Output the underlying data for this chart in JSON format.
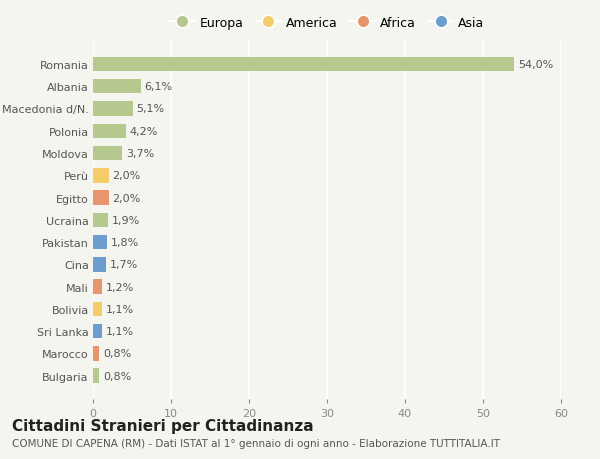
{
  "countries": [
    "Romania",
    "Albania",
    "Macedonia d/N.",
    "Polonia",
    "Moldova",
    "Perù",
    "Egitto",
    "Ucraina",
    "Pakistan",
    "Cina",
    "Mali",
    "Bolivia",
    "Sri Lanka",
    "Marocco",
    "Bulgaria"
  ],
  "values": [
    54.0,
    6.1,
    5.1,
    4.2,
    3.7,
    2.0,
    2.0,
    1.9,
    1.8,
    1.7,
    1.2,
    1.1,
    1.1,
    0.8,
    0.8
  ],
  "labels": [
    "54,0%",
    "6,1%",
    "5,1%",
    "4,2%",
    "3,7%",
    "2,0%",
    "2,0%",
    "1,9%",
    "1,8%",
    "1,7%",
    "1,2%",
    "1,1%",
    "1,1%",
    "0,8%",
    "0,8%"
  ],
  "continents": [
    "Europa",
    "Europa",
    "Europa",
    "Europa",
    "Europa",
    "America",
    "Africa",
    "Europa",
    "Asia",
    "Asia",
    "Africa",
    "America",
    "Asia",
    "Africa",
    "Europa"
  ],
  "continent_colors": {
    "Europa": "#b5c98e",
    "America": "#f5cc6a",
    "Africa": "#e8956d",
    "Asia": "#6b9ecf"
  },
  "legend_order": [
    "Europa",
    "America",
    "Africa",
    "Asia"
  ],
  "title": "Cittadini Stranieri per Cittadinanza",
  "subtitle": "COMUNE DI CAPENA (RM) - Dati ISTAT al 1° gennaio di ogni anno - Elaborazione TUTTITALIA.IT",
  "xlim": [
    0,
    60
  ],
  "xticks": [
    0,
    10,
    20,
    30,
    40,
    50,
    60
  ],
  "background_color": "#f5f5f0",
  "grid_color": "#ffffff",
  "title_fontsize": 11,
  "subtitle_fontsize": 7.5,
  "label_fontsize": 8,
  "tick_fontsize": 8,
  "legend_fontsize": 9
}
